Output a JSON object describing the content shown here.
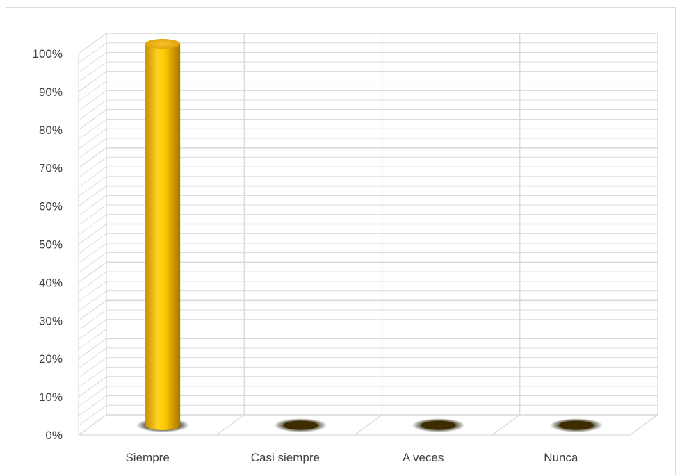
{
  "chart_data": {
    "type": "bar",
    "style": "3d-cylinder",
    "categories": [
      "Siempre",
      "Casi siempre",
      "A veces",
      "Nunca"
    ],
    "values": [
      100,
      0,
      0,
      0
    ],
    "ylim": [
      0,
      100
    ],
    "ytick_step": 10,
    "ytick_format": "percent",
    "grid": true,
    "title": "",
    "xlabel": "",
    "ylabel": "",
    "colors": {
      "bar": "#f2b705",
      "bar_highlight": "#ffd84a",
      "bar_shadow": "#b98600",
      "grid": "#d9d9d9",
      "base_spot": "#3d2c00"
    }
  }
}
